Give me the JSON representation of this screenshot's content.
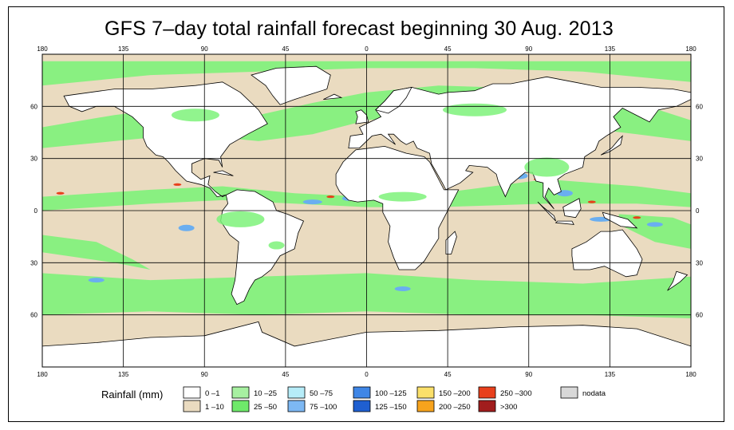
{
  "title": "GFS 7–day total rainfall forecast beginning 30 Aug. 2013",
  "map": {
    "lon_ticks": [
      "180",
      "135",
      "90",
      "45",
      "0",
      "45",
      "90",
      "135",
      "180"
    ],
    "lat_ticks": [
      "60",
      "30",
      "0",
      "30",
      "60"
    ],
    "lat_values": [
      60,
      30,
      0,
      -30,
      -60
    ],
    "lon_values": [
      -180,
      -135,
      -90,
      -45,
      0,
      45,
      90,
      135,
      180
    ],
    "land_color": "#ffffff",
    "ocean_colors": {
      "dry": "#eadbc0",
      "light": "#7ef27a",
      "moderate": "#a8e9f7"
    }
  },
  "legend": {
    "label": "Rainfall (mm)",
    "items": [
      {
        "label": "0 –1",
        "color": "#ffffff"
      },
      {
        "label": "1 –10",
        "color": "#eadbc0"
      },
      {
        "label": "10 –25",
        "color": "#a7f0a1"
      },
      {
        "label": "25 –50",
        "color": "#6ee96a"
      },
      {
        "label": "50 –75",
        "color": "#b6ecf8"
      },
      {
        "label": "75 –100",
        "color": "#7db8f3"
      },
      {
        "label": "100 –125",
        "color": "#3f86e6"
      },
      {
        "label": "125 –150",
        "color": "#1f5fd0"
      },
      {
        "label": "150 –200",
        "color": "#fbe06a"
      },
      {
        "label": "200 –250",
        "color": "#f7a31d"
      },
      {
        "label": "250 –300",
        "color": "#e8401c"
      },
      {
        "label": ">300",
        "color": "#a11d1d"
      },
      {
        "label": "nodata",
        "color": "#d8d8d8"
      }
    ]
  }
}
